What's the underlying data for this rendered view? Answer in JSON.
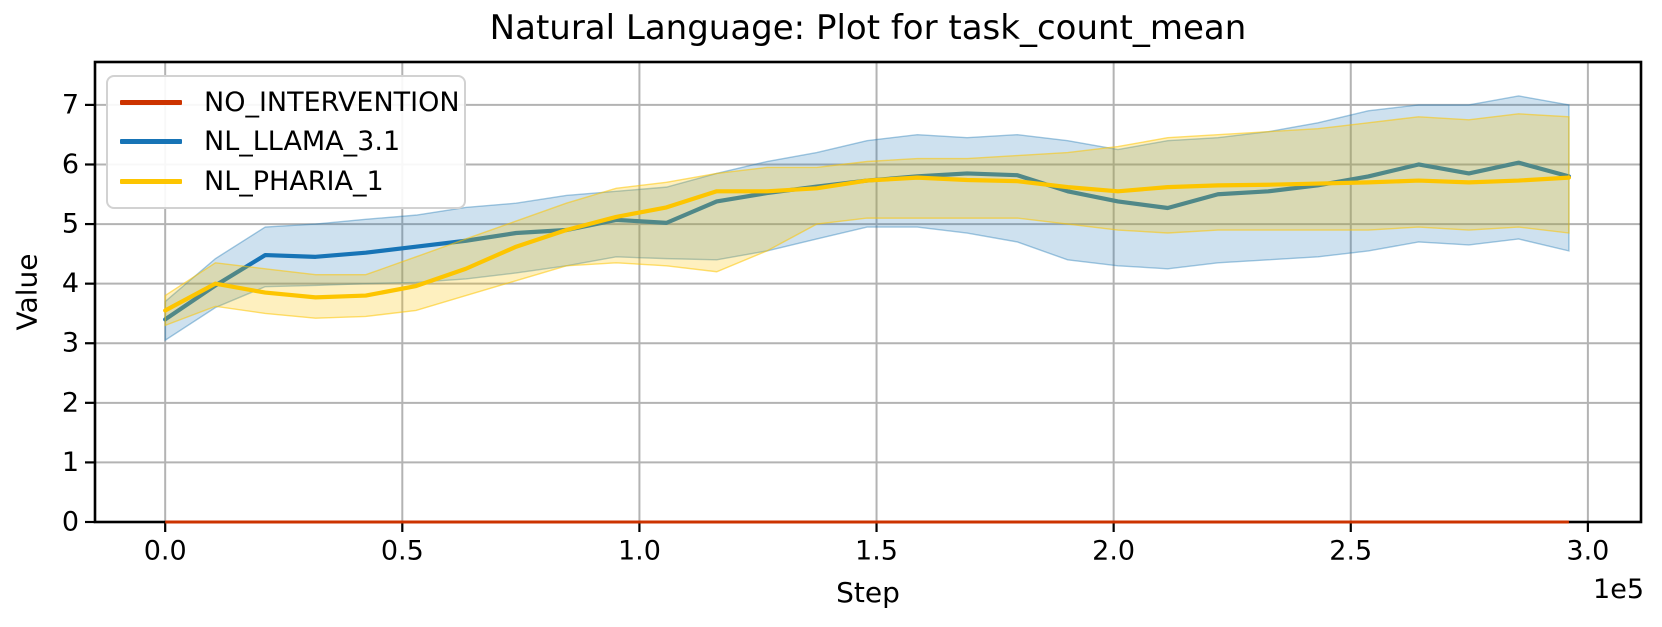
{
  "chart_data": {
    "type": "line",
    "title": "Natural Language: Plot for task_count_mean",
    "xlabel": "Step",
    "ylabel": "Value",
    "x_offset_label": "1e5",
    "x_unit": 100000,
    "grid": true,
    "legend_position": "upper left",
    "xlim": [
      -0.148,
      3.112
    ],
    "ylim": [
      0,
      7.72
    ],
    "xticks": [
      0.0,
      0.5,
      1.0,
      1.5,
      2.0,
      2.5,
      3.0
    ],
    "xtick_labels": [
      "0.0",
      "0.5",
      "1.0",
      "1.5",
      "2.0",
      "2.5",
      "3.0"
    ],
    "yticks": [
      0,
      1,
      2,
      3,
      4,
      5,
      6,
      7
    ],
    "ytick_labels": [
      "0",
      "1",
      "2",
      "3",
      "4",
      "5",
      "6",
      "7"
    ],
    "x": [
      0,
      0.106,
      0.211,
      0.317,
      0.423,
      0.529,
      0.634,
      0.74,
      0.846,
      0.951,
      1.057,
      1.163,
      1.269,
      1.374,
      1.48,
      1.586,
      1.691,
      1.797,
      1.903,
      2.009,
      2.114,
      2.22,
      2.326,
      2.431,
      2.537,
      2.643,
      2.749,
      2.854,
      2.96
    ],
    "series": [
      {
        "name": "NO_INTERVENTION",
        "color": "#cc3300",
        "line_width": 3,
        "values": [
          0,
          0,
          0,
          0,
          0,
          0,
          0,
          0,
          0,
          0,
          0,
          0,
          0,
          0,
          0,
          0,
          0,
          0,
          0,
          0,
          0,
          0,
          0,
          0,
          0,
          0,
          0,
          0,
          0
        ]
      },
      {
        "name": "NL_LLAMA_3.1",
        "color": "#1774b6",
        "line_width": 4.2,
        "values": [
          3.4,
          3.97,
          4.48,
          4.45,
          4.52,
          4.62,
          4.72,
          4.85,
          4.9,
          5.07,
          5.02,
          5.38,
          5.52,
          5.63,
          5.73,
          5.8,
          5.85,
          5.82,
          5.55,
          5.38,
          5.27,
          5.5,
          5.55,
          5.65,
          5.8,
          6.0,
          5.85,
          6.03,
          5.8
        ],
        "band_lower": [
          3.05,
          3.6,
          3.95,
          3.97,
          4.0,
          4.02,
          4.08,
          4.18,
          4.3,
          4.45,
          4.42,
          4.4,
          4.55,
          4.75,
          4.95,
          4.95,
          4.85,
          4.7,
          4.4,
          4.3,
          4.25,
          4.35,
          4.4,
          4.45,
          4.55,
          4.7,
          4.65,
          4.75,
          4.55
        ],
        "band_upper": [
          3.7,
          4.42,
          4.95,
          5.0,
          5.08,
          5.15,
          5.28,
          5.35,
          5.48,
          5.55,
          5.62,
          5.85,
          6.05,
          6.2,
          6.4,
          6.5,
          6.45,
          6.5,
          6.4,
          6.25,
          6.4,
          6.45,
          6.55,
          6.7,
          6.9,
          7.0,
          7.0,
          7.15,
          7.0
        ],
        "band_fill": "rgba(31,119,180,0.22)",
        "band_edge": "rgba(31,119,180,0.40)"
      },
      {
        "name": "NL_PHARIA_1",
        "color": "#fdc500",
        "line_width": 4.2,
        "values": [
          3.55,
          4.0,
          3.85,
          3.77,
          3.8,
          3.96,
          4.25,
          4.62,
          4.9,
          5.12,
          5.28,
          5.55,
          5.55,
          5.6,
          5.73,
          5.78,
          5.74,
          5.72,
          5.62,
          5.55,
          5.62,
          5.65,
          5.66,
          5.68,
          5.7,
          5.73,
          5.7,
          5.73,
          5.78
        ],
        "band_lower": [
          3.3,
          3.62,
          3.5,
          3.42,
          3.45,
          3.55,
          3.8,
          4.05,
          4.3,
          4.35,
          4.3,
          4.2,
          4.55,
          5.0,
          5.1,
          5.1,
          5.1,
          5.1,
          5.0,
          4.9,
          4.85,
          4.9,
          4.9,
          4.9,
          4.9,
          4.95,
          4.9,
          4.95,
          4.85
        ],
        "band_upper": [
          3.8,
          4.35,
          4.25,
          4.15,
          4.15,
          4.45,
          4.75,
          5.05,
          5.35,
          5.6,
          5.7,
          5.85,
          5.95,
          5.95,
          6.05,
          6.1,
          6.1,
          6.15,
          6.2,
          6.3,
          6.45,
          6.5,
          6.55,
          6.6,
          6.7,
          6.8,
          6.75,
          6.85,
          6.8
        ],
        "band_fill": "rgba(253,197,0,0.25)",
        "band_edge": "rgba(253,197,0,0.55)"
      }
    ],
    "style": {
      "grid_color": "#b3b3b3",
      "spine_color": "#000000",
      "tick_color": "#000000",
      "background": "#ffffff"
    }
  }
}
